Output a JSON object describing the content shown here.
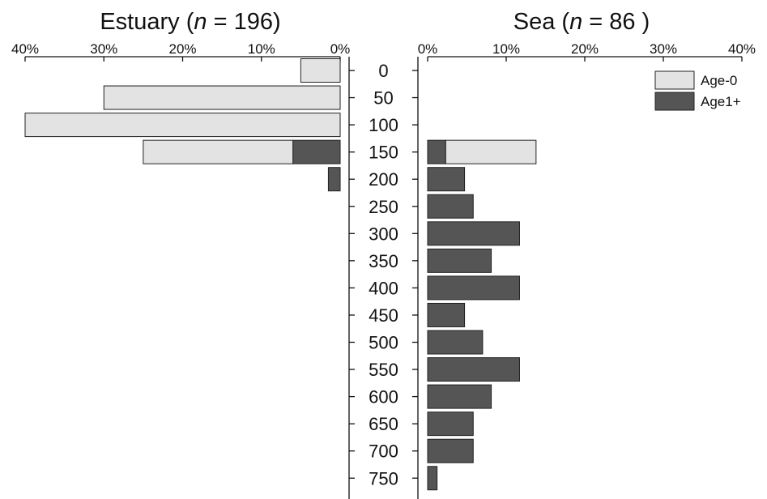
{
  "chart_data": {
    "type": "bar",
    "orientation": "horizontal",
    "layout": "back-to-back stacked",
    "legend_placement": "top-right",
    "grid": false,
    "colors": {
      "Age-0": "#e3e3e3",
      "Age1+": "#555555"
    },
    "size_axis": {
      "tick_labels": [
        "0",
        "50",
        "100",
        "150",
        "200",
        "250",
        "300",
        "350",
        "400",
        "450",
        "500",
        "550",
        "600",
        "650",
        "700",
        "750"
      ],
      "categories": [
        "0",
        "50",
        "100",
        "150",
        "200",
        "250",
        "300",
        "350",
        "400",
        "450",
        "500",
        "550",
        "600",
        "650",
        "700",
        "750"
      ]
    },
    "legend": [
      "Age-0",
      "Age1+"
    ],
    "panels": [
      {
        "title": "Estuary",
        "n_label": "n",
        "n_value": "196",
        "direction": "left",
        "xlim": [
          0,
          40
        ],
        "x_tick_labels": [
          "40%",
          "30%",
          "20%",
          "10%",
          "0%"
        ],
        "series": [
          {
            "name": "Age-0",
            "values": [
              5,
              30,
              40,
              19,
              0,
              0,
              0,
              0,
              0,
              0,
              0,
              0,
              0,
              0,
              0,
              0
            ]
          },
          {
            "name": "Age1+",
            "values": [
              0,
              0,
              0,
              6,
              1.5,
              0,
              0,
              0,
              0,
              0,
              0,
              0,
              0,
              0,
              0,
              0
            ]
          }
        ]
      },
      {
        "title": "Sea",
        "n_label": "n",
        "n_value": "86 )",
        "direction": "right",
        "xlim": [
          0,
          40
        ],
        "x_tick_labels": [
          "0%",
          "10%",
          "20%",
          "30%",
          "40%"
        ],
        "series": [
          {
            "name": "Age-0",
            "values": [
              0,
              0,
              0,
              11.5,
              0,
              0,
              0,
              0,
              0,
              0,
              0,
              0,
              0,
              0,
              0,
              0
            ]
          },
          {
            "name": "Age1+",
            "values": [
              0,
              0,
              0,
              2.3,
              4.7,
              5.8,
              11.7,
              8.1,
              11.7,
              4.7,
              7,
              11.7,
              8.1,
              5.8,
              5.8,
              1.2
            ]
          }
        ]
      }
    ]
  }
}
